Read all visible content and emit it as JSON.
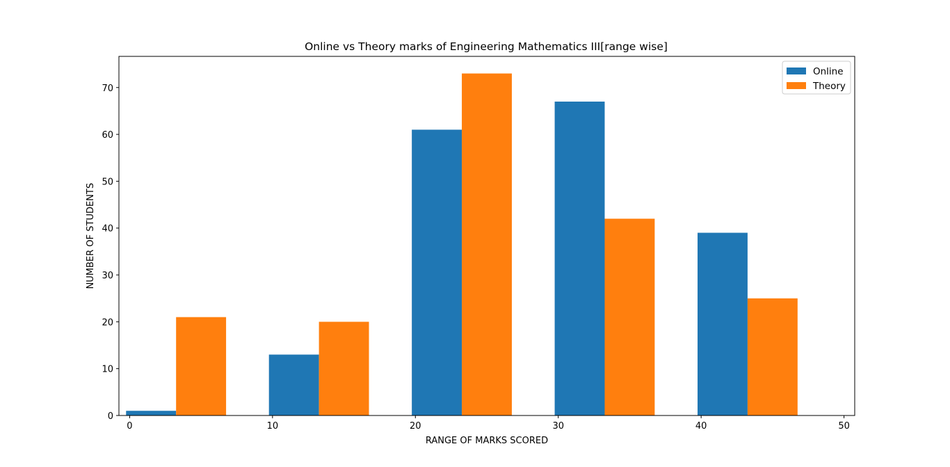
{
  "chart_data": {
    "type": "bar",
    "title": "Online vs Theory marks of Engineering Mathematics III[range wise]",
    "xlabel": "RANGE OF MARKS SCORED",
    "ylabel": "NUMBER OF STUDENTS",
    "xlim": [
      -0.75,
      50.75
    ],
    "ylim": [
      0,
      76.65
    ],
    "xticks": [
      0,
      10,
      20,
      30,
      40,
      50
    ],
    "yticks": [
      0,
      10,
      20,
      30,
      40,
      50,
      60,
      70
    ],
    "bar_width": 3.5,
    "series": [
      {
        "name": "Online",
        "color": "#1f77b4",
        "x": [
          1.5,
          11.5,
          21.5,
          31.5,
          41.5
        ],
        "values": [
          1,
          13,
          61,
          67,
          39
        ]
      },
      {
        "name": "Theory",
        "color": "#ff7f0e",
        "x": [
          5,
          15,
          25,
          35,
          45
        ],
        "values": [
          21,
          20,
          73,
          42,
          25
        ]
      }
    ],
    "legend": {
      "placement": "top-right"
    },
    "grid": false
  }
}
